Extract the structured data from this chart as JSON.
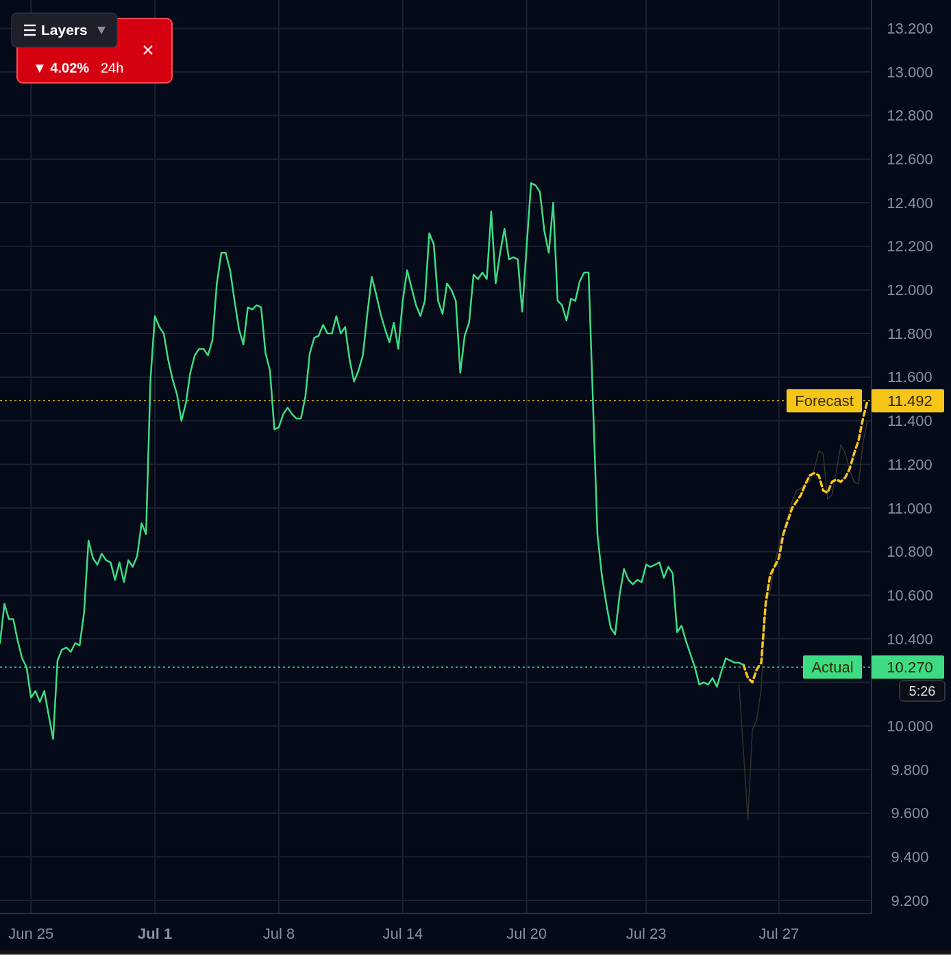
{
  "chart_data": {
    "type": "line",
    "annotations": [
      "Layers",
      "▼ 4.02%",
      "24h",
      "5:26",
      "11.492",
      "10.270"
    ],
    "categories": [
      null,
      null,
      null,
      null,
      null,
      null,
      null,
      "Jun 25",
      null,
      null,
      null,
      null,
      null,
      null,
      null,
      null,
      null,
      null,
      null,
      null,
      null,
      null,
      null,
      null,
      null,
      null,
      null,
      null,
      null,
      null,
      null,
      null,
      null,
      null,
      null,
      "Jul 1",
      null,
      null,
      null,
      null,
      null,
      null,
      null,
      null,
      null,
      null,
      null,
      null,
      null,
      null,
      null,
      null,
      null,
      null,
      null,
      null,
      null,
      null,
      null,
      null,
      null,
      null,
      null,
      "Jul 8",
      null,
      null,
      null,
      null,
      null,
      null,
      null,
      null,
      null,
      null,
      null,
      null,
      null,
      null,
      null,
      null,
      null,
      null,
      null,
      null,
      null,
      null,
      null,
      null,
      null,
      null,
      null,
      "Jul 14",
      null,
      null,
      null,
      null,
      null,
      null,
      null,
      null,
      null,
      null,
      null,
      null,
      null,
      null,
      null,
      null,
      null,
      null,
      null,
      null,
      null,
      null,
      null,
      null,
      null,
      null,
      null,
      "Jul 20",
      null,
      null,
      null,
      null,
      null,
      null,
      null,
      null,
      null,
      null,
      null,
      null,
      null,
      null,
      null,
      null,
      null,
      null,
      null,
      null,
      null,
      null,
      null,
      null,
      null,
      null,
      "Jul 23",
      null,
      null,
      null,
      null,
      null,
      null,
      null,
      null,
      null,
      null,
      null,
      null,
      null,
      null,
      null,
      null,
      null,
      null,
      null,
      null,
      null,
      null,
      null,
      null,
      null,
      null,
      null,
      null,
      null,
      "Jul 27",
      null,
      null,
      null,
      null,
      null,
      null,
      null,
      null,
      null,
      null,
      null,
      null,
      null,
      null,
      null,
      null,
      null,
      null,
      null,
      null
    ],
    "ylim": [
      9.14,
      13.33
    ],
    "yticks": [
      {
        "value": 9.2,
        "label": "9.200"
      },
      {
        "value": 9.4,
        "label": "9.400"
      },
      {
        "value": 9.6,
        "label": "9.600"
      },
      {
        "value": 9.8,
        "label": "9.800"
      },
      {
        "value": 10,
        "label": "10.000"
      },
      {
        "value": 10.2,
        "label": null
      },
      {
        "value": 10.4,
        "label": "10.400"
      },
      {
        "value": 10.6,
        "label": "10.600"
      },
      {
        "value": 10.8,
        "label": "10.800"
      },
      {
        "value": 11,
        "label": "11.000"
      },
      {
        "value": 11.2,
        "label": "11.200"
      },
      {
        "value": 11.4,
        "label": "11.400"
      },
      {
        "value": 11.6,
        "label": "11.600"
      },
      {
        "value": 11.8,
        "label": "11.800"
      },
      {
        "value": 12,
        "label": "12.000"
      },
      {
        "value": 12.2,
        "label": "12.200"
      },
      {
        "value": 12.4,
        "label": "12.400"
      },
      {
        "value": 12.6,
        "label": "12.600"
      },
      {
        "value": 12.8,
        "label": "12.800"
      },
      {
        "value": 13,
        "label": "13.000"
      },
      {
        "value": 13.2,
        "label": "13.200"
      }
    ],
    "grid": true,
    "ref_lines": [
      {
        "axis": "y",
        "value": 11.492,
        "label": "Forecast",
        "color": "#f5c518",
        "line_style": "dotted"
      },
      {
        "axis": "y",
        "value": 10.27,
        "label": "Actual",
        "color": "#3ddc84",
        "line_style": "dotted"
      }
    ],
    "series": [
      {
        "color": "#3ddc84",
        "line_style": "solid",
        "values": [
          10.38,
          10.56,
          10.49,
          10.49,
          10.39,
          10.31,
          10.27,
          10.13,
          10.16,
          10.11,
          10.16,
          10.05,
          9.94,
          10.3,
          10.35,
          10.36,
          10.34,
          10.38,
          10.37,
          10.52,
          10.85,
          10.77,
          10.74,
          10.79,
          10.76,
          10.75,
          10.67,
          10.75,
          10.66,
          10.76,
          10.73,
          10.78,
          10.93,
          10.88,
          11.59,
          11.88,
          11.83,
          11.8,
          11.68,
          11.59,
          11.52,
          11.4,
          11.48,
          11.62,
          11.7,
          11.73,
          11.73,
          11.7,
          11.77,
          12.03,
          12.17,
          12.17,
          12.09,
          11.95,
          11.82,
          11.75,
          11.92,
          11.91,
          11.93,
          11.92,
          11.71,
          11.63,
          11.36,
          11.37,
          11.43,
          11.46,
          11.43,
          11.41,
          11.41,
          11.51,
          11.71,
          11.78,
          11.79,
          11.84,
          11.8,
          11.8,
          11.88,
          11.8,
          11.83,
          11.68,
          11.58,
          11.63,
          11.7,
          11.89,
          12.06,
          11.98,
          11.89,
          11.82,
          11.76,
          11.85,
          11.73,
          11.95,
          12.09,
          12.01,
          11.93,
          11.88,
          11.95,
          12.26,
          12.21,
          11.95,
          11.89,
          12.03,
          12,
          11.95,
          11.62,
          11.79,
          11.85,
          12.07,
          12.05,
          12.08,
          12.05,
          12.36,
          12.03,
          12.17,
          12.28,
          12.14,
          12.15,
          12.14,
          11.9,
          12.2,
          12.49,
          12.48,
          12.45,
          12.27,
          12.17,
          12.4,
          11.95,
          11.93,
          11.86,
          11.96,
          11.95,
          12.04,
          12.08,
          12.08,
          11.48,
          10.88,
          10.69,
          10.56,
          10.45,
          10.42,
          10.6,
          10.72,
          10.67,
          10.65,
          10.67,
          10.66,
          10.74,
          10.73,
          10.74,
          10.75,
          10.68,
          10.73,
          10.7,
          10.43,
          10.46,
          10.39,
          10.33,
          10.27,
          10.19,
          10.2,
          10.19,
          10.22,
          10.18,
          10.25,
          10.31,
          10.3,
          10.29,
          10.29,
          10.28,
          null,
          null,
          null,
          null,
          null,
          null,
          null,
          null,
          null,
          null,
          null,
          null,
          null,
          null,
          null,
          null,
          null,
          null,
          null,
          null,
          null,
          null,
          null,
          null,
          null,
          null,
          null,
          null
        ]
      },
      {
        "color": "#f5c518",
        "line_style": "dashed",
        "values": [
          null,
          null,
          null,
          null,
          null,
          null,
          null,
          null,
          null,
          null,
          null,
          null,
          null,
          null,
          null,
          null,
          null,
          null,
          null,
          null,
          null,
          null,
          null,
          null,
          null,
          null,
          null,
          null,
          null,
          null,
          null,
          null,
          null,
          null,
          null,
          null,
          null,
          null,
          null,
          null,
          null,
          null,
          null,
          null,
          null,
          null,
          null,
          null,
          null,
          null,
          null,
          null,
          null,
          null,
          null,
          null,
          null,
          null,
          null,
          null,
          null,
          null,
          null,
          null,
          null,
          null,
          null,
          null,
          null,
          null,
          null,
          null,
          null,
          null,
          null,
          null,
          null,
          null,
          null,
          null,
          null,
          null,
          null,
          null,
          null,
          null,
          null,
          null,
          null,
          null,
          null,
          null,
          null,
          null,
          null,
          null,
          null,
          null,
          null,
          null,
          null,
          null,
          null,
          null,
          null,
          null,
          null,
          null,
          null,
          null,
          null,
          null,
          null,
          null,
          null,
          null,
          null,
          null,
          null,
          null,
          null,
          null,
          null,
          null,
          null,
          null,
          null,
          null,
          null,
          null,
          null,
          null,
          null,
          null,
          null,
          null,
          null,
          null,
          null,
          null,
          null,
          null,
          null,
          null,
          null,
          null,
          null,
          null,
          null,
          null,
          null,
          null,
          null,
          null,
          null,
          null,
          null,
          null,
          null,
          null,
          null,
          null,
          null,
          null,
          null,
          null,
          null,
          null,
          10.28,
          10.22,
          10.2,
          10.26,
          10.29,
          10.56,
          10.69,
          10.73,
          10.77,
          10.88,
          10.94,
          11,
          11.03,
          11.06,
          11.11,
          11.15,
          11.16,
          11.15,
          11.08,
          11.07,
          11.12,
          11.13,
          11.12,
          11.14,
          11.18,
          11.25,
          11.31,
          11.41,
          11.49
        ]
      },
      {
        "color": "#33332a",
        "line_style": "solid",
        "values": [
          null,
          null,
          null,
          null,
          null,
          null,
          null,
          null,
          null,
          null,
          null,
          null,
          null,
          null,
          null,
          null,
          null,
          null,
          null,
          null,
          null,
          null,
          null,
          null,
          null,
          null,
          null,
          null,
          null,
          null,
          null,
          null,
          null,
          null,
          null,
          null,
          null,
          null,
          null,
          null,
          null,
          null,
          null,
          null,
          null,
          null,
          null,
          null,
          null,
          null,
          null,
          null,
          null,
          null,
          null,
          null,
          null,
          null,
          null,
          null,
          null,
          null,
          null,
          null,
          null,
          null,
          null,
          null,
          null,
          null,
          null,
          null,
          null,
          null,
          null,
          null,
          null,
          null,
          null,
          null,
          null,
          null,
          null,
          null,
          null,
          null,
          null,
          null,
          null,
          null,
          null,
          null,
          null,
          null,
          null,
          null,
          null,
          null,
          null,
          null,
          null,
          null,
          null,
          null,
          null,
          null,
          null,
          null,
          null,
          null,
          null,
          null,
          null,
          null,
          null,
          null,
          null,
          null,
          null,
          null,
          null,
          null,
          null,
          null,
          null,
          null,
          null,
          null,
          null,
          null,
          null,
          null,
          null,
          null,
          null,
          null,
          null,
          null,
          null,
          null,
          null,
          null,
          null,
          null,
          null,
          null,
          null,
          null,
          null,
          null,
          null,
          null,
          null,
          null,
          null,
          null,
          null,
          null,
          null,
          null,
          null,
          null,
          null,
          null,
          null,
          null,
          null,
          10.19,
          9.88,
          9.57,
          9.98,
          10.03,
          10.17,
          10.56,
          10.62,
          10.74,
          10.83,
          10.89,
          10.96,
          11.03,
          11.08,
          11.09,
          11.11,
          11.12,
          11.18,
          11.26,
          11.25,
          11.04,
          11.06,
          11.17,
          11.29,
          11.25,
          11.17,
          11.12,
          11.11,
          11.3,
          11.4
        ]
      }
    ]
  }
}
